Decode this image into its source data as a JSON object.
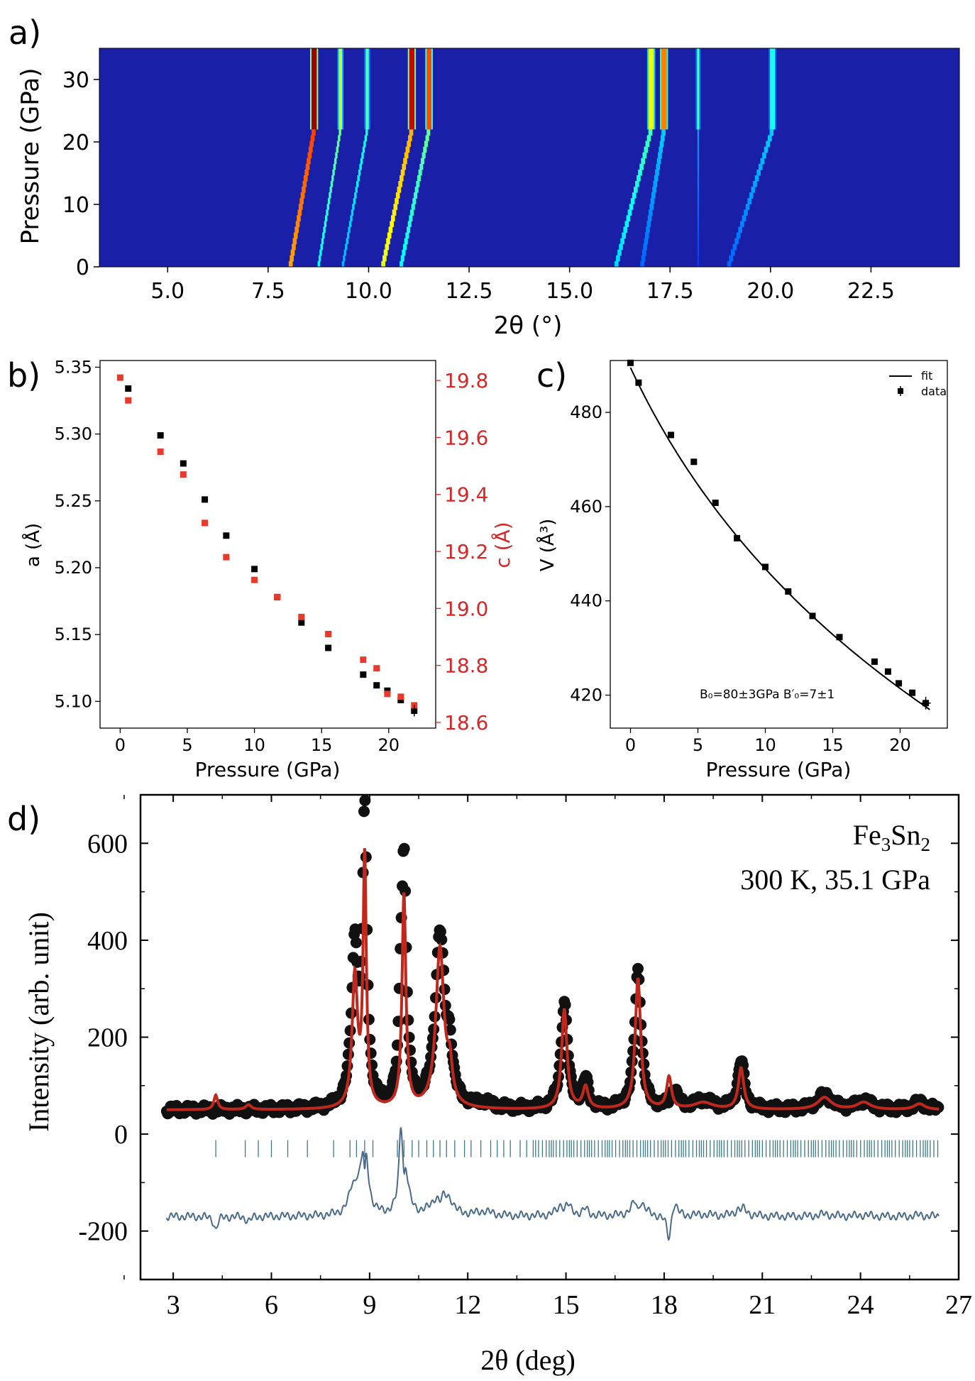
{
  "colors": {
    "axis": "#000000",
    "c_axis": "#d62728",
    "a_points": "#000000",
    "c_points": "#e8392b",
    "fit_red": "#c0281e",
    "diff_line": "#4a6a8a",
    "ticks_teal": "#3d7a84",
    "heatmap_bg": "#1a1fa8"
  },
  "chart_data": [
    {
      "panel_label": "a)",
      "type": "heatmap",
      "xlabel": "2θ (°)",
      "ylabel": "Pressure (GPa)",
      "xlim": [
        3.3,
        24.7
      ],
      "ylim": [
        0,
        35
      ],
      "x_ticks": [
        "5.0",
        "7.5",
        "10.0",
        "12.5",
        "15.0",
        "17.5",
        "20.0",
        "22.5"
      ],
      "y_ticks": [
        "0",
        "10",
        "20",
        "30"
      ],
      "colormap": "jet",
      "peaks": [
        {
          "x0": 8.05,
          "slope": 0.027,
          "intensity_low": 0.95,
          "intensity_high": 0.97,
          "width": 0.1
        },
        {
          "x0": 8.75,
          "slope": 0.025,
          "intensity_low": 0.5,
          "intensity_high": 0.55,
          "width": 0.06
        },
        {
          "x0": 9.35,
          "slope": 0.028,
          "intensity_low": 0.4,
          "intensity_high": 0.45,
          "width": 0.06
        },
        {
          "x0": 10.35,
          "slope": 0.033,
          "intensity_low": 0.8,
          "intensity_high": 0.92,
          "width": 0.1
        },
        {
          "x0": 10.8,
          "slope": 0.032,
          "intensity_low": 0.5,
          "intensity_high": 0.8,
          "width": 0.09
        },
        {
          "x0": 16.15,
          "slope": 0.04,
          "intensity_low": 0.45,
          "intensity_high": 0.6,
          "width": 0.1
        },
        {
          "x0": 16.8,
          "slope": 0.025,
          "intensity_low": 0.3,
          "intensity_high": 0.75,
          "width": 0.1
        },
        {
          "x0": 18.2,
          "slope": 0.0,
          "intensity_low": 0.25,
          "intensity_high": 0.45,
          "width": 0.03
        },
        {
          "x0": 18.95,
          "slope": 0.05,
          "intensity_low": 0.3,
          "intensity_high": 0.4,
          "width": 0.1
        }
      ]
    },
    {
      "panel_label": "b)",
      "type": "scatter",
      "xlabel": "Pressure (GPa)",
      "ylabel": "a (Å)",
      "y2label": "c (Å)",
      "xlim": [
        -1.5,
        23.5
      ],
      "ylim": [
        5.08,
        5.355
      ],
      "y2lim": [
        18.58,
        19.87
      ],
      "x_ticks": [
        0,
        5,
        10,
        15,
        20
      ],
      "y_ticks": [
        "5.10",
        "5.15",
        "5.20",
        "5.25",
        "5.30",
        "5.35"
      ],
      "y2_ticks": [
        "18.6",
        "18.8",
        "19.0",
        "19.2",
        "19.4",
        "19.6",
        "19.8"
      ],
      "series": [
        {
          "axis": "left",
          "x": [
            0.6,
            3.0,
            4.7,
            6.3,
            7.9,
            10.0,
            11.7,
            13.5,
            15.5,
            18.1,
            19.1,
            19.9,
            20.9,
            21.9
          ],
          "y": [
            5.334,
            5.299,
            5.278,
            5.251,
            5.224,
            5.199,
            5.178,
            5.159,
            5.14,
            5.12,
            5.112,
            5.108,
            5.101,
            5.093
          ]
        },
        {
          "axis": "right",
          "x": [
            0.0,
            0.6,
            3.0,
            4.7,
            6.3,
            7.9,
            10.0,
            11.7,
            13.5,
            15.5,
            18.1,
            19.1,
            19.9,
            20.9,
            21.9
          ],
          "y": [
            19.81,
            19.73,
            19.55,
            19.47,
            19.3,
            19.18,
            19.1,
            19.04,
            18.97,
            18.91,
            18.82,
            18.79,
            18.7,
            18.69,
            18.66
          ]
        }
      ]
    },
    {
      "panel_label": "c)",
      "type": "scatter",
      "xlabel": "Pressure (GPa)",
      "ylabel": "V (Å³)",
      "xlim": [
        -1.5,
        23.5
      ],
      "ylim": [
        413,
        491
      ],
      "x_ticks": [
        0,
        5,
        10,
        15,
        20
      ],
      "y_ticks": [
        420,
        440,
        460,
        480
      ],
      "legend": [
        "fit",
        "data"
      ],
      "annotation": "B₀=80±3GPa B′₀=7±1",
      "series": [
        {
          "name": "data",
          "x": [
            0.0,
            0.6,
            3.0,
            4.7,
            6.3,
            7.9,
            10.0,
            11.7,
            13.5,
            15.5,
            18.1,
            19.1,
            19.9,
            20.9,
            21.9
          ],
          "y": [
            490.5,
            486.3,
            475.2,
            469.5,
            460.8,
            453.3,
            447.2,
            442.0,
            436.8,
            432.3,
            427.1,
            425.0,
            422.5,
            420.5,
            418.3
          ]
        }
      ],
      "fit_eos": {
        "V0": 489.5,
        "B0": 80,
        "B0p": 7
      }
    },
    {
      "panel_label": "d)",
      "type": "line",
      "xlabel": "2θ (deg)",
      "ylabel": "Intensity (arb. unit)",
      "xlim": [
        2.0,
        27.0
      ],
      "ylim": [
        -300,
        700
      ],
      "x_ticks": [
        3,
        6,
        9,
        12,
        15,
        18,
        21,
        24,
        27
      ],
      "y_ticks": [
        "600",
        "400",
        "200",
        "0",
        "-200"
      ],
      "text_lines": [
        "Fe3Sn2",
        "300 K, 35.1 GPa"
      ],
      "formula_parts": {
        "fe": "Fe",
        "three": "3",
        "sn": "Sn",
        "two": "2"
      },
      "condition_text": "300 K, 35.1 GPa",
      "baseline": 50,
      "x_range": [
        2.8,
        26.4
      ],
      "peaks_obs": [
        [
          8.55,
          330,
          0.12
        ],
        [
          8.85,
          590,
          0.08
        ],
        [
          9.95,
          125,
          0.06
        ],
        [
          10.05,
          500,
          0.09
        ],
        [
          11.15,
          360,
          0.17
        ],
        [
          11.45,
          90,
          0.1
        ],
        [
          14.95,
          220,
          0.12
        ],
        [
          15.6,
          60,
          0.1
        ],
        [
          17.2,
          285,
          0.12
        ],
        [
          18.3,
          40,
          0.12
        ],
        [
          20.35,
          100,
          0.12
        ],
        [
          22.9,
          30,
          0.25
        ],
        [
          24.1,
          18,
          0.25
        ],
        [
          25.8,
          15,
          0.2
        ],
        [
          19.2,
          18,
          0.35
        ],
        [
          12.5,
          10,
          0.3
        ]
      ],
      "peaks_fit": [
        [
          4.3,
          30,
          0.07
        ],
        [
          8.55,
          270,
          0.1
        ],
        [
          8.85,
          510,
          0.06
        ],
        [
          10.05,
          440,
          0.07
        ],
        [
          11.15,
          330,
          0.15
        ],
        [
          11.45,
          70,
          0.09
        ],
        [
          14.95,
          205,
          0.1
        ],
        [
          15.6,
          45,
          0.1
        ],
        [
          17.2,
          270,
          0.1
        ],
        [
          18.15,
          65,
          0.09
        ],
        [
          20.35,
          85,
          0.1
        ],
        [
          22.9,
          25,
          0.25
        ],
        [
          24.1,
          15,
          0.25
        ],
        [
          25.8,
          12,
          0.2
        ],
        [
          19.2,
          14,
          0.35
        ],
        [
          5.3,
          10,
          0.1
        ]
      ],
      "bragg_offset": -30,
      "bragg_positions": [
        4.3,
        5.2,
        5.6,
        6.0,
        6.5,
        7.1,
        7.9,
        8.4,
        8.6,
        8.85,
        9.1,
        9.85,
        10.05,
        10.3,
        10.5,
        10.75,
        10.95,
        11.15,
        11.35,
        11.6,
        11.9,
        12.1,
        12.4,
        12.7,
        12.9,
        13.1,
        13.3,
        13.6,
        13.8,
        14.0
      ],
      "bragg_dense_start": 14.1,
      "bragg_dense_end": 26.4,
      "bragg_dense_step": 0.09,
      "diff_offset": -170
    }
  ]
}
